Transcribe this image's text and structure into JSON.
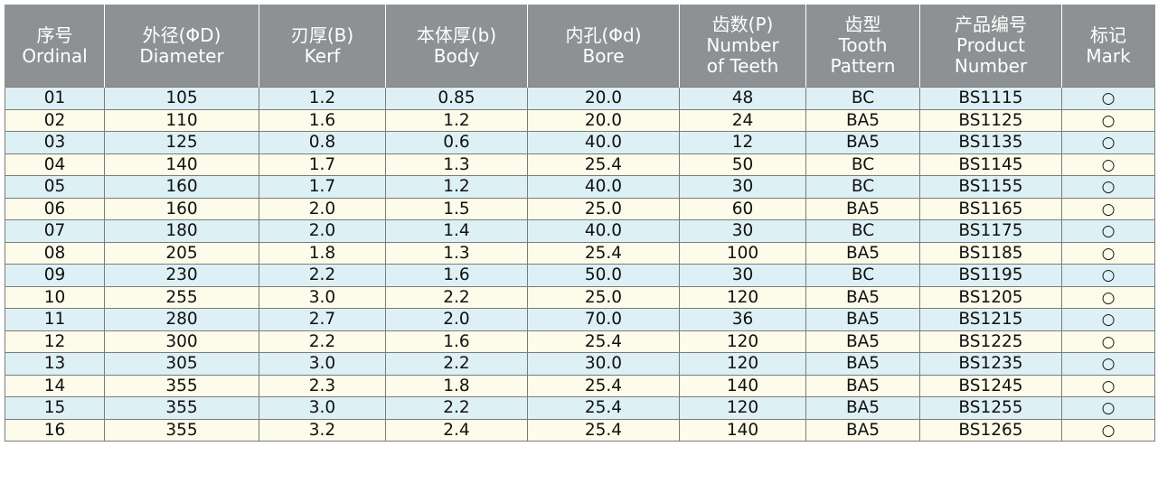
{
  "colors": {
    "header_bg": "#8e9193",
    "header_text": "#ffffff",
    "row_odd_bg": "#ddf0f6",
    "row_even_bg": "#fdfbe9",
    "border": "#7b7b7b"
  },
  "table": {
    "headers": [
      [
        "序号",
        "Ordinal"
      ],
      [
        "外径(ΦD)",
        "Diameter"
      ],
      [
        "刃厚(B)",
        "Kerf"
      ],
      [
        "本体厚(b)",
        "Body"
      ],
      [
        "内孔(Φd)",
        "Bore"
      ],
      [
        "齿数(P)",
        "Number",
        "of Teeth"
      ],
      [
        "齿型",
        "Tooth",
        "Pattern"
      ],
      [
        "产品编号",
        "Product",
        "Number"
      ],
      [
        "标记",
        "Mark"
      ]
    ],
    "rows": [
      [
        "01",
        "105",
        "1.2",
        "0.85",
        "20.0",
        "48",
        "BC",
        "BS1115",
        "○"
      ],
      [
        "02",
        "110",
        "1.6",
        "1.2",
        "20.0",
        "24",
        "BA5",
        "BS1125",
        "○"
      ],
      [
        "03",
        "125",
        "0.8",
        "0.6",
        "40.0",
        "12",
        "BA5",
        "BS1135",
        "○"
      ],
      [
        "04",
        "140",
        "1.7",
        "1.3",
        "25.4",
        "50",
        "BC",
        "BS1145",
        "○"
      ],
      [
        "05",
        "160",
        "1.7",
        "1.2",
        "40.0",
        "30",
        "BC",
        "BS1155",
        "○"
      ],
      [
        "06",
        "160",
        "2.0",
        "1.5",
        "25.0",
        "60",
        "BA5",
        "BS1165",
        "○"
      ],
      [
        "07",
        "180",
        "2.0",
        "1.4",
        "40.0",
        "30",
        "BC",
        "BS1175",
        "○"
      ],
      [
        "08",
        "205",
        "1.8",
        "1.3",
        "25.4",
        "100",
        "BA5",
        "BS1185",
        "○"
      ],
      [
        "09",
        "230",
        "2.2",
        "1.6",
        "50.0",
        "30",
        "BC",
        "BS1195",
        "○"
      ],
      [
        "10",
        "255",
        "3.0",
        "2.2",
        "25.0",
        "120",
        "BA5",
        "BS1205",
        "○"
      ],
      [
        "11",
        "280",
        "2.7",
        "2.0",
        "70.0",
        "36",
        "BA5",
        "BS1215",
        "○"
      ],
      [
        "12",
        "300",
        "2.2",
        "1.6",
        "25.4",
        "120",
        "BA5",
        "BS1225",
        "○"
      ],
      [
        "13",
        "305",
        "3.0",
        "2.2",
        "30.0",
        "120",
        "BA5",
        "BS1235",
        "○"
      ],
      [
        "14",
        "355",
        "2.3",
        "1.8",
        "25.4",
        "140",
        "BA5",
        "BS1245",
        "○"
      ],
      [
        "15",
        "355",
        "3.0",
        "2.2",
        "25.4",
        "120",
        "BA5",
        "BS1255",
        "○"
      ],
      [
        "16",
        "355",
        "3.2",
        "2.4",
        "25.4",
        "140",
        "BA5",
        "BS1265",
        "○"
      ]
    ]
  }
}
